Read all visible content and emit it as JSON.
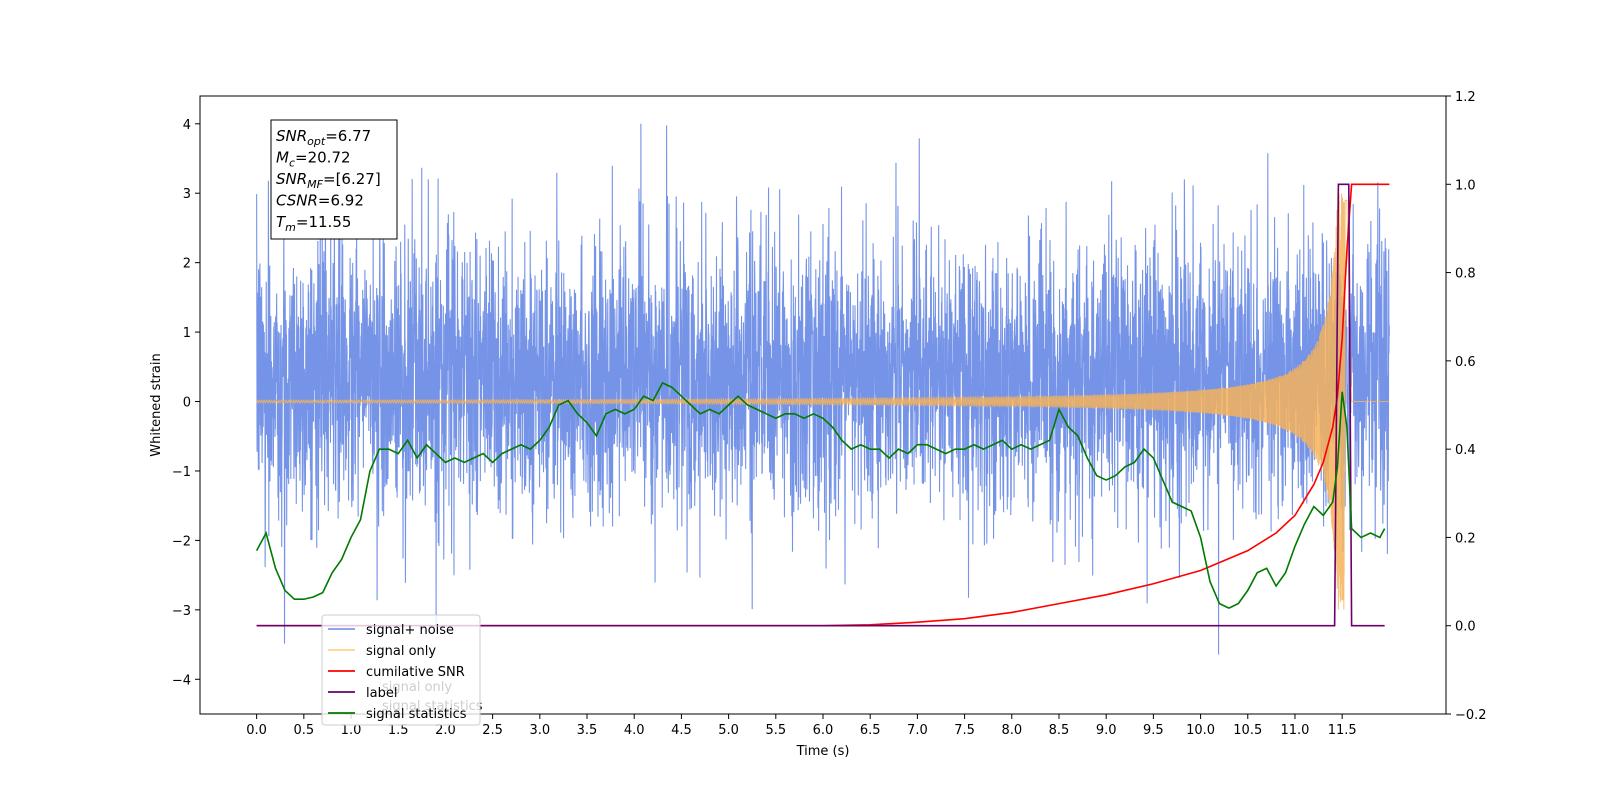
{
  "chart_data": {
    "type": "line",
    "xlabel": "Time (s)",
    "ylabel": "Whitened strain",
    "xlim": [
      -0.6,
      12.6
    ],
    "ylim": [
      -4.5,
      4.4
    ],
    "y2lim": [
      -0.2,
      1.2
    ],
    "x_ticks": [
      0.0,
      0.5,
      1.0,
      1.5,
      2.0,
      2.5,
      3.0,
      3.5,
      4.0,
      4.5,
      5.0,
      5.5,
      6.0,
      6.5,
      7.0,
      7.5,
      8.0,
      8.5,
      9.0,
      9.5,
      10.0,
      10.5,
      11.0,
      11.5
    ],
    "x_tick_labels": [
      "0.0",
      "0.5",
      "1.0",
      "1.5",
      "2.0",
      "2.5",
      "3.0",
      "3.5",
      "4.0",
      "4.5",
      "5.0",
      "5.5",
      "6.0",
      "6.5",
      "7.0",
      "7.5",
      "8.0",
      "8.5",
      "9.0",
      "9.5",
      "10.0",
      "10.5",
      "11.0",
      "11.5"
    ],
    "y_ticks": [
      -4,
      -3,
      -2,
      -1,
      0,
      1,
      2,
      3,
      4
    ],
    "y_tick_labels": [
      "−4",
      "−3",
      "−2",
      "−1",
      "0",
      "1",
      "2",
      "3",
      "4"
    ],
    "y2_ticks": [
      -0.2,
      0.0,
      0.2,
      0.4,
      0.6,
      0.8,
      1.0,
      1.2
    ],
    "y2_tick_labels": [
      "−0.2",
      "0.0",
      "0.2",
      "0.4",
      "0.6",
      "0.8",
      "1.0",
      "1.2"
    ],
    "colors": {
      "noise": "#6f8ee6",
      "signal": "#f5b25a",
      "cum_snr": "#ff0000",
      "label": "#6b006b",
      "stats": "#007a00"
    },
    "noise": {
      "t_range": [
        0.0,
        12.0
      ],
      "envelope_upper": 3.4,
      "envelope_lower": -2.6,
      "max": 4.0,
      "min": -3.8
    },
    "signal": {
      "t_range": [
        0.0,
        11.55
      ],
      "max_amplitude": 3.0,
      "merger_time": 11.55
    },
    "series": [
      {
        "name": "cumilative SNR",
        "axis": "right",
        "x": [
          0.0,
          6.0,
          6.5,
          7.0,
          7.5,
          8.0,
          8.5,
          9.0,
          9.5,
          10.0,
          10.5,
          10.8,
          11.0,
          11.2,
          11.3,
          11.4,
          11.45,
          11.5,
          11.55,
          11.6,
          12.0
        ],
        "y": [
          0.0,
          0.0,
          0.002,
          0.008,
          0.016,
          0.03,
          0.05,
          0.07,
          0.095,
          0.125,
          0.17,
          0.21,
          0.25,
          0.32,
          0.37,
          0.45,
          0.52,
          0.65,
          0.85,
          1.0,
          1.0
        ]
      },
      {
        "name": "label",
        "axis": "right",
        "x": [
          0.0,
          11.42,
          11.46,
          11.57,
          11.6,
          11.95
        ],
        "y": [
          0.0,
          0.0,
          1.0,
          1.0,
          0.0,
          0.0
        ]
      },
      {
        "name": "signal statistics",
        "axis": "right",
        "x": [
          0.0,
          0.1,
          0.2,
          0.3,
          0.4,
          0.5,
          0.6,
          0.7,
          0.8,
          0.9,
          1.0,
          1.1,
          1.2,
          1.3,
          1.4,
          1.5,
          1.6,
          1.7,
          1.8,
          1.9,
          2.0,
          2.1,
          2.2,
          2.3,
          2.4,
          2.5,
          2.6,
          2.7,
          2.8,
          2.9,
          3.0,
          3.1,
          3.2,
          3.3,
          3.4,
          3.5,
          3.6,
          3.7,
          3.8,
          3.9,
          4.0,
          4.1,
          4.2,
          4.3,
          4.4,
          4.5,
          4.6,
          4.7,
          4.8,
          4.9,
          5.0,
          5.1,
          5.2,
          5.3,
          5.4,
          5.5,
          5.6,
          5.7,
          5.8,
          5.9,
          6.0,
          6.1,
          6.2,
          6.3,
          6.4,
          6.5,
          6.6,
          6.7,
          6.8,
          6.9,
          7.0,
          7.1,
          7.2,
          7.3,
          7.4,
          7.5,
          7.6,
          7.7,
          7.8,
          7.9,
          8.0,
          8.1,
          8.2,
          8.3,
          8.4,
          8.5,
          8.6,
          8.7,
          8.8,
          8.9,
          9.0,
          9.1,
          9.2,
          9.3,
          9.4,
          9.5,
          9.6,
          9.7,
          9.8,
          9.9,
          10.0,
          10.1,
          10.2,
          10.3,
          10.4,
          10.5,
          10.6,
          10.7,
          10.8,
          10.9,
          11.0,
          11.1,
          11.2,
          11.3,
          11.4,
          11.45,
          11.5,
          11.55,
          11.6,
          11.7,
          11.8,
          11.9,
          11.95
        ],
        "y": [
          0.17,
          0.21,
          0.13,
          0.08,
          0.06,
          0.06,
          0.065,
          0.075,
          0.12,
          0.15,
          0.2,
          0.24,
          0.35,
          0.4,
          0.4,
          0.39,
          0.42,
          0.38,
          0.41,
          0.39,
          0.37,
          0.38,
          0.37,
          0.38,
          0.39,
          0.37,
          0.39,
          0.4,
          0.41,
          0.4,
          0.42,
          0.45,
          0.5,
          0.51,
          0.48,
          0.46,
          0.43,
          0.48,
          0.49,
          0.48,
          0.49,
          0.52,
          0.51,
          0.55,
          0.54,
          0.52,
          0.5,
          0.48,
          0.49,
          0.48,
          0.5,
          0.52,
          0.5,
          0.49,
          0.48,
          0.47,
          0.48,
          0.48,
          0.47,
          0.48,
          0.47,
          0.45,
          0.42,
          0.4,
          0.41,
          0.4,
          0.4,
          0.38,
          0.4,
          0.39,
          0.41,
          0.41,
          0.4,
          0.39,
          0.4,
          0.4,
          0.41,
          0.4,
          0.41,
          0.42,
          0.4,
          0.41,
          0.4,
          0.41,
          0.42,
          0.49,
          0.45,
          0.43,
          0.38,
          0.34,
          0.33,
          0.34,
          0.36,
          0.37,
          0.4,
          0.38,
          0.33,
          0.28,
          0.27,
          0.26,
          0.2,
          0.1,
          0.05,
          0.04,
          0.05,
          0.08,
          0.12,
          0.13,
          0.09,
          0.12,
          0.18,
          0.23,
          0.27,
          0.25,
          0.28,
          0.36,
          0.53,
          0.45,
          0.22,
          0.2,
          0.21,
          0.2,
          0.22
        ]
      }
    ],
    "annotation": {
      "lines": [
        {
          "main": "SNR",
          "sub": "opt",
          "value": "=6.77"
        },
        {
          "main": "M",
          "sub": "c",
          "value": "=20.72"
        },
        {
          "main": "SNR",
          "sub": "MF",
          "value": "=[6.27]"
        },
        {
          "main": "CSNR",
          "sub": "",
          "value": "=6.92"
        },
        {
          "main": "T",
          "sub": "m",
          "value": "=11.55"
        }
      ]
    },
    "legend": {
      "placement": "lower-left",
      "entries": [
        {
          "label": "signal+ noise",
          "color": "#7b9cf0"
        },
        {
          "label": "signal only",
          "color": "#ffd28f"
        },
        {
          "label": "cumilative SNR",
          "color": "#ff0000"
        },
        {
          "label": "label",
          "color": "#6b006b"
        },
        {
          "label": "signal statistics",
          "color": "#007a00"
        }
      ],
      "background_text": [
        {
          "label": "signal only",
          "color": "#c8c8c8"
        },
        {
          "label": "signal statistics",
          "color": "#c8c8c8"
        }
      ]
    }
  }
}
